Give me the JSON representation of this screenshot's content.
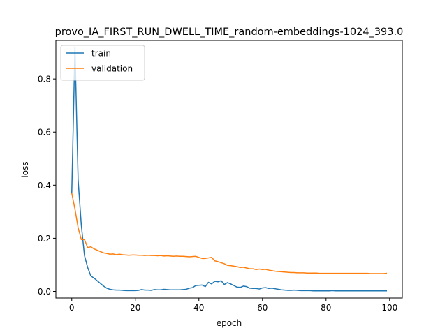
{
  "chart_data": {
    "type": "line",
    "title": "provo_IA_FIRST_RUN_DWELL_TIME_random-embeddings-1024_393.0",
    "xlabel": "epoch",
    "ylabel": "loss",
    "xlim": [
      -5,
      104
    ],
    "ylim": [
      -0.025,
      0.945
    ],
    "xticks": [
      0,
      20,
      40,
      60,
      80,
      100
    ],
    "yticks": [
      0.0,
      0.2,
      0.4,
      0.6,
      0.8
    ],
    "xtick_labels": [
      "0",
      "20",
      "40",
      "60",
      "80",
      "100"
    ],
    "ytick_labels": [
      "0.0",
      "0.2",
      "0.4",
      "0.6",
      "0.8"
    ],
    "grid": false,
    "legend_position": "top-left",
    "series": [
      {
        "name": "train",
        "color": "#1f77b4",
        "x": [
          0,
          1,
          2,
          3,
          4,
          5,
          6,
          7,
          8,
          9,
          10,
          11,
          12,
          13,
          14,
          15,
          16,
          17,
          18,
          19,
          20,
          21,
          22,
          23,
          24,
          25,
          26,
          27,
          28,
          29,
          30,
          31,
          32,
          33,
          34,
          35,
          36,
          37,
          38,
          39,
          40,
          41,
          42,
          43,
          44,
          45,
          46,
          47,
          48,
          49,
          50,
          51,
          52,
          53,
          54,
          55,
          56,
          57,
          58,
          59,
          60,
          61,
          62,
          63,
          64,
          65,
          66,
          67,
          68,
          69,
          70,
          71,
          72,
          73,
          74,
          75,
          76,
          77,
          78,
          79,
          80,
          81,
          82,
          83,
          84,
          85,
          86,
          87,
          88,
          89,
          90,
          91,
          92,
          93,
          94,
          95,
          96,
          97,
          98,
          99
        ],
        "y": [
          0.37,
          0.92,
          0.42,
          0.25,
          0.135,
          0.09,
          0.058,
          0.05,
          0.04,
          0.03,
          0.02,
          0.012,
          0.008,
          0.006,
          0.005,
          0.005,
          0.004,
          0.003,
          0.003,
          0.003,
          0.003,
          0.004,
          0.007,
          0.005,
          0.005,
          0.004,
          0.007,
          0.006,
          0.006,
          0.008,
          0.007,
          0.006,
          0.006,
          0.006,
          0.006,
          0.007,
          0.008,
          0.012,
          0.014,
          0.022,
          0.023,
          0.024,
          0.018,
          0.034,
          0.028,
          0.038,
          0.036,
          0.04,
          0.026,
          0.033,
          0.028,
          0.022,
          0.016,
          0.015,
          0.02,
          0.018,
          0.012,
          0.011,
          0.011,
          0.009,
          0.013,
          0.014,
          0.011,
          0.012,
          0.01,
          0.008,
          0.006,
          0.005,
          0.004,
          0.004,
          0.005,
          0.004,
          0.003,
          0.003,
          0.003,
          0.003,
          0.002,
          0.002,
          0.002,
          0.002,
          0.002,
          0.002,
          0.003,
          0.002,
          0.002,
          0.002,
          0.002,
          0.002,
          0.002,
          0.002,
          0.002,
          0.002,
          0.002,
          0.002,
          0.002,
          0.002,
          0.002,
          0.002,
          0.002,
          0.002
        ]
      },
      {
        "name": "validation",
        "color": "#ff7f0e",
        "x": [
          0,
          1,
          2,
          3,
          4,
          5,
          6,
          7,
          8,
          9,
          10,
          11,
          12,
          13,
          14,
          15,
          16,
          17,
          18,
          19,
          20,
          21,
          22,
          23,
          24,
          25,
          26,
          27,
          28,
          29,
          30,
          31,
          32,
          33,
          34,
          35,
          36,
          37,
          38,
          39,
          40,
          41,
          42,
          43,
          44,
          45,
          46,
          47,
          48,
          49,
          50,
          51,
          52,
          53,
          54,
          55,
          56,
          57,
          58,
          59,
          60,
          61,
          62,
          63,
          64,
          65,
          66,
          67,
          68,
          69,
          70,
          71,
          72,
          73,
          74,
          75,
          76,
          77,
          78,
          79,
          80,
          81,
          82,
          83,
          84,
          85,
          86,
          87,
          88,
          89,
          90,
          91,
          92,
          93,
          94,
          95,
          96,
          97,
          98,
          99
        ],
        "y": [
          0.37,
          0.31,
          0.24,
          0.195,
          0.195,
          0.165,
          0.168,
          0.16,
          0.155,
          0.15,
          0.145,
          0.143,
          0.14,
          0.141,
          0.138,
          0.14,
          0.138,
          0.137,
          0.136,
          0.137,
          0.137,
          0.136,
          0.136,
          0.135,
          0.136,
          0.135,
          0.135,
          0.134,
          0.135,
          0.133,
          0.134,
          0.133,
          0.132,
          0.133,
          0.132,
          0.132,
          0.131,
          0.13,
          0.131,
          0.132,
          0.128,
          0.124,
          0.124,
          0.126,
          0.128,
          0.115,
          0.112,
          0.108,
          0.104,
          0.098,
          0.097,
          0.095,
          0.093,
          0.09,
          0.091,
          0.088,
          0.085,
          0.085,
          0.082,
          0.084,
          0.082,
          0.083,
          0.08,
          0.078,
          0.076,
          0.075,
          0.074,
          0.073,
          0.072,
          0.071,
          0.071,
          0.07,
          0.07,
          0.07,
          0.069,
          0.069,
          0.069,
          0.069,
          0.068,
          0.068,
          0.068,
          0.068,
          0.068,
          0.068,
          0.068,
          0.068,
          0.068,
          0.068,
          0.068,
          0.068,
          0.068,
          0.068,
          0.068,
          0.068,
          0.067,
          0.067,
          0.067,
          0.067,
          0.067,
          0.068
        ]
      }
    ]
  }
}
